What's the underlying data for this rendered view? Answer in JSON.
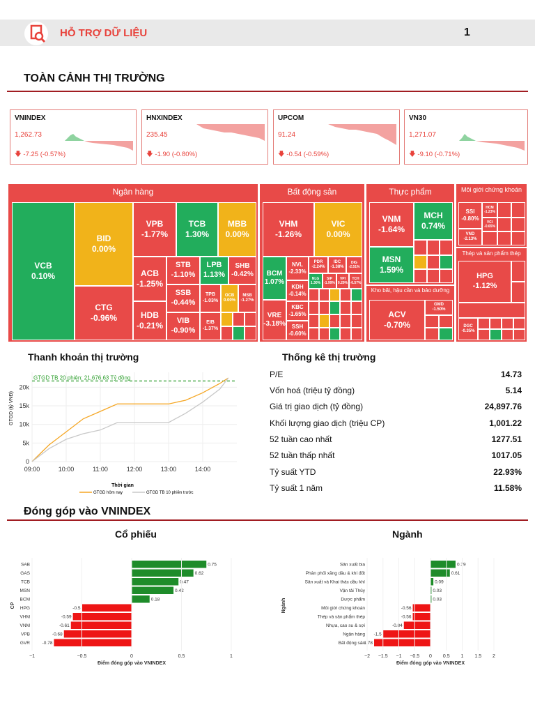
{
  "header": {
    "title": "HỖ TRỢ DỮ LIỆU",
    "page": "1"
  },
  "overview": {
    "title": "TOÀN CẢNH THỊ TRƯỜNG"
  },
  "indices": [
    {
      "name": "VNINDEX",
      "price": "1,262.73",
      "change": "-7.25 (-0.57%)"
    },
    {
      "name": "HNXINDEX",
      "price": "235.45",
      "change": "-1.90 (-0.80%)"
    },
    {
      "name": "UPCOM",
      "price": "91.24",
      "change": "-0.54 (-0.59%)"
    },
    {
      "name": "VN30",
      "price": "1,271.07",
      "change": "-9.10 (-0.71%)"
    }
  ],
  "treemap": {
    "sectors": {
      "bank": "Ngân hàng",
      "realestate": "Bất động sản",
      "food": "Thực phẩm",
      "broker": "Môi giới chứng khoán",
      "steel": "Thép và sản phẩm thép",
      "logistics": "Kho bãi, hậu cần và bảo dưỡng"
    },
    "tiles": {
      "VCB": {
        "t": "VCB",
        "v": "0.10%"
      },
      "BID": {
        "t": "BID",
        "v": "0.00%"
      },
      "CTG": {
        "t": "CTG",
        "v": "-0.96%"
      },
      "VPB": {
        "t": "VPB",
        "v": "-1.77%"
      },
      "TCB": {
        "t": "TCB",
        "v": "1.30%"
      },
      "MBB": {
        "t": "MBB",
        "v": "0.00%"
      },
      "ACB": {
        "t": "ACB",
        "v": "-1.25%"
      },
      "STB": {
        "t": "STB",
        "v": "-1.10%"
      },
      "LPB": {
        "t": "LPB",
        "v": "1.13%"
      },
      "SHB": {
        "t": "SHB",
        "v": "-0.42%"
      },
      "SSB": {
        "t": "SSB",
        "v": "-0.44%"
      },
      "HDB": {
        "t": "HDB",
        "v": "-0.21%"
      },
      "VIB": {
        "t": "VIB",
        "v": "-0.90%"
      },
      "TPB": {
        "t": "TPB",
        "v": "-1.03%"
      },
      "OCB": {
        "t": "OCB",
        "v": "0.00%"
      },
      "MSB": {
        "t": "MSB",
        "v": "-1.27%"
      },
      "EIB": {
        "t": "EIB",
        "v": "-1.37%"
      },
      "VHM": {
        "t": "VHM",
        "v": "-1.26%"
      },
      "VIC": {
        "t": "VIC",
        "v": "0.00%"
      },
      "BCM": {
        "t": "BCM",
        "v": "1.07%"
      },
      "NVL": {
        "t": "NVL",
        "v": "-2.33%"
      },
      "PDR": {
        "t": "PDR",
        "v": "-2.24%"
      },
      "IDC": {
        "t": "IDC",
        "v": "-1.38%"
      },
      "DIG": {
        "t": "DIG",
        "v": "-2.51%"
      },
      "KDH": {
        "t": "KDH",
        "v": "-0.14%"
      },
      "NLG": {
        "t": "NLG",
        "v": "1.30%"
      },
      "SIP": {
        "t": "SIP",
        "v": "-1.99%"
      },
      "VPI": {
        "t": "VPI",
        "v": "0.29%"
      },
      "TCH": {
        "t": "TCH",
        "v": "-0.57%"
      },
      "VRE": {
        "t": "VRE",
        "v": "-3.18%"
      },
      "KBC": {
        "t": "KBC",
        "v": "-1.65%"
      },
      "SSH": {
        "t": "SSH",
        "v": "-0.60%"
      },
      "VNM": {
        "t": "VNM",
        "v": "-1.64%"
      },
      "MCH": {
        "t": "MCH",
        "v": "0.74%"
      },
      "MSN": {
        "t": "MSN",
        "v": "1.59%"
      },
      "SSI": {
        "t": "SSI",
        "v": "-0.80%"
      },
      "HCM": {
        "t": "HCM",
        "v": "-1.23%"
      },
      "VND": {
        "t": "VND",
        "v": "-2.13%"
      },
      "VCI": {
        "t": "VCI",
        "v": "-0.65%"
      },
      "HPG": {
        "t": "HPG",
        "v": "-1.12%"
      },
      "ACV": {
        "t": "ACV",
        "v": "-0.70%"
      },
      "GMD": {
        "t": "GMD",
        "v": "-1.50%"
      },
      "DGC": {
        "t": "DGC",
        "v": "-0.35%"
      }
    }
  },
  "liquidity": {
    "title": "Thanh khoản thị trường",
    "ref_label": "GTGD TB 20 phiên: 21,676.63 Tỷ đồng",
    "chart_data": {
      "type": "line",
      "x": [
        "09:00",
        "09:30",
        "10:00",
        "10:30",
        "11:00",
        "11:30",
        "12:00",
        "12:30",
        "13:00",
        "13:30",
        "14:00",
        "14:30",
        "14:45"
      ],
      "series": [
        {
          "name": "GTGD hôm nay",
          "color": "#f5a623",
          "values": [
            0,
            4500,
            8000,
            11500,
            13500,
            15500,
            15500,
            15500,
            15500,
            16500,
            18500,
            21000,
            22500
          ]
        },
        {
          "name": "GTGD TB 10 phiên trước",
          "color": "#c8c8c8",
          "values": [
            0,
            3500,
            6000,
            7500,
            8500,
            10500,
            10500,
            10500,
            10500,
            13000,
            16000,
            19500,
            22500
          ]
        }
      ],
      "ref_value": 21676.63,
      "xlabel": "Thời gian",
      "ylabel": "GTGD (tỷ VNĐ)",
      "xticks": [
        "09:00",
        "10:00",
        "11:00",
        "12:00",
        "13:00",
        "14:00"
      ],
      "yticks": [
        "0",
        "5k",
        "10k",
        "15k",
        "20k"
      ],
      "ylim": [
        0,
        24000
      ]
    }
  },
  "stats": {
    "title": "Thống kê thị trường",
    "rows": [
      {
        "label": "P/E",
        "value": "14.73"
      },
      {
        "label": "Vốn hoá (triệu tỷ đồng)",
        "value": "5.14"
      },
      {
        "label": "Giá trị giao dịch (tỷ đồng)",
        "value": "24,897.76"
      },
      {
        "label": "Khối lượng giao dịch (triệu CP)",
        "value": "1,001.22"
      },
      {
        "label": "52 tuần cao nhất",
        "value": "1277.51"
      },
      {
        "label": "52 tuần thấp nhất",
        "value": "1017.05"
      },
      {
        "label": "Tỷ suất YTD",
        "value": "22.93%"
      },
      {
        "label": "Tỷ suất 1 năm",
        "value": "11.58%"
      }
    ]
  },
  "contribution": {
    "title": "Đóng góp vào VNINDEX",
    "stocks": {
      "title": "Cổ phiếu",
      "chart_data": {
        "type": "bar",
        "orientation": "horizontal",
        "categories": [
          "SAB",
          "GAS",
          "TCB",
          "MSN",
          "BCM",
          "HPG",
          "VHM",
          "VNM",
          "VPB",
          "GVR"
        ],
        "values": [
          0.75,
          0.62,
          0.47,
          0.42,
          0.18,
          -0.5,
          -0.59,
          -0.61,
          -0.68,
          -0.78
        ],
        "value_labels": [
          "0.75",
          "0.62",
          "0.47",
          "0.42",
          "0.18",
          "-0.5",
          "-0.59",
          "-0.61",
          "-0.68",
          "-0.78"
        ],
        "xlabel": "Điểm đóng góp vào VNINDEX",
        "ylabel": "CP",
        "xlim": [
          -1,
          1
        ],
        "xticks": [
          -1,
          -0.5,
          0,
          0.5,
          1
        ],
        "xtick_labels": [
          "−1",
          "−0.5",
          "0",
          "0.5",
          "1"
        ]
      }
    },
    "sectors": {
      "title": "Ngành",
      "chart_data": {
        "type": "bar",
        "orientation": "horizontal",
        "categories": [
          "Sản xuất bia",
          "Phân phối xăng dầu & khí đốt",
          "Sản xuất và Khai thác dầu khí",
          "Vận tải Thủy",
          "Dược phẩm",
          "Môi giới chứng khoán",
          "Thép và sản phẩm thép",
          "Nhựa, cao su & sợi",
          "Ngân hàng",
          "Bất động sản"
        ],
        "values": [
          0.79,
          0.61,
          0.09,
          0.03,
          0.03,
          -0.56,
          -0.56,
          -0.84,
          -1.5,
          -1.78
        ],
        "value_labels": [
          "0.79",
          "0.61",
          "0.09",
          "0.03",
          "0.03",
          "-0.56",
          "-0.56",
          "-0.84",
          "-1.5",
          "-1.78"
        ],
        "xlabel": "Điểm đóng góp vào VNINDEX",
        "ylabel": "Ngành",
        "xlim": [
          -2,
          2
        ],
        "xticks": [
          -2,
          -1.5,
          -1,
          -0.5,
          0,
          0.5,
          1,
          1.5,
          2
        ],
        "xtick_labels": [
          "−2",
          "−1.5",
          "−1",
          "−0.5",
          "0",
          "0.5",
          "1",
          "1.5",
          "2"
        ]
      }
    }
  }
}
